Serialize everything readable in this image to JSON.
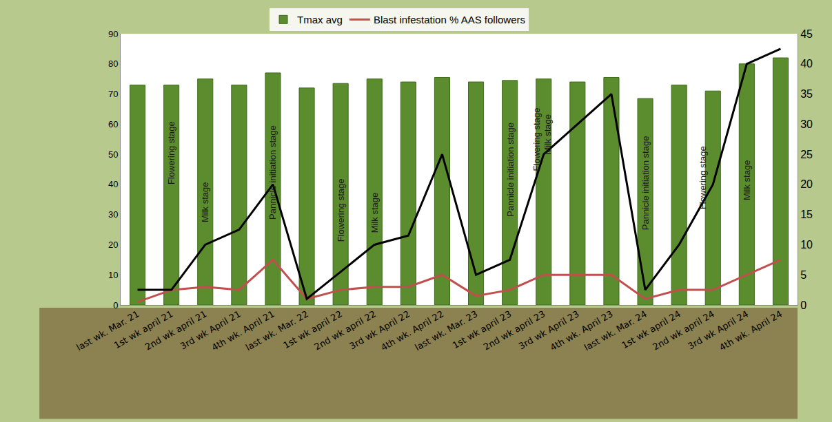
{
  "chart_data": {
    "type": "bar",
    "categories": [
      "last wk. Mar. 21",
      "1st wk april 21",
      "2nd wk april 21",
      "3rd wk April 21",
      "4th wk. April 21",
      "last wk. Mar. 22",
      "1st wk april 22",
      "2nd wk april 22",
      "3rd wk April 22",
      "4th wk. April 22",
      "last wk. Mar. 23",
      "1st wk april 23",
      "2nd wk april 23",
      "3rd wk April 23",
      "4th wk. April 23",
      "last wk. Mar. 24",
      "1st wk april 24",
      "2nd wk april 24",
      "3rd wk April 24",
      "4th wk. April 24"
    ],
    "series": [
      {
        "name": "Tmax avg",
        "type": "bar",
        "color": "#5b8c2e",
        "values": [
          73,
          73,
          75,
          73,
          77,
          72,
          73.5,
          75,
          74,
          75.5,
          74,
          74.5,
          75,
          74,
          75.5,
          68.5,
          73,
          71,
          80,
          82
        ]
      },
      {
        "name": "Blast infestation % AAS followers",
        "type": "line",
        "color": "#c0504d",
        "axis": "y2",
        "values": [
          0.5,
          2.5,
          3,
          2.5,
          7.5,
          1,
          2.5,
          3,
          3,
          5,
          1.5,
          2.5,
          5,
          5,
          5,
          1,
          2.5,
          2.5,
          5,
          7.5
        ]
      },
      {
        "type": "line",
        "color": "#000000",
        "axis": "y2",
        "values": [
          2.5,
          2.5,
          10,
          12.5,
          20,
          1,
          5.5,
          10,
          11.5,
          25,
          5,
          7.5,
          25,
          30,
          35,
          2.5,
          10,
          20,
          40,
          42.5
        ]
      }
    ],
    "ylim": [
      0,
      90
    ],
    "yticks": [
      0,
      10,
      20,
      30,
      40,
      50,
      60,
      70,
      80,
      90
    ],
    "y2lim": [
      0,
      45
    ],
    "y2ticks": [
      0,
      5,
      10,
      15,
      20,
      25,
      30,
      35,
      40,
      45
    ],
    "grid": false,
    "legend": "top",
    "annotations": [
      {
        "text": "Flowering stage",
        "category": "1st wk april 21"
      },
      {
        "text": "Milk stage",
        "category": "2nd wk april 21"
      },
      {
        "text": "Pannicle initiation stage",
        "category": "4th wk. April 21"
      },
      {
        "text": "Flowering stage",
        "category": "1st wk april 22"
      },
      {
        "text": "Milk stage",
        "category": "2nd wk april 22"
      },
      {
        "text": "Pannicle initiation stage",
        "category": "1st wk april 23"
      },
      {
        "text": "Flowering stage",
        "category": "2nd wk april 23"
      },
      {
        "text": "Milk stage",
        "category": "2nd wk april 23"
      },
      {
        "text": "Pannicle initiation stage",
        "category": "last wk. Mar. 24"
      },
      {
        "text": "Flowering stage",
        "category": "2nd wk april 24"
      },
      {
        "text": "Milk stage",
        "category": "3rd wk April 24"
      }
    ]
  }
}
